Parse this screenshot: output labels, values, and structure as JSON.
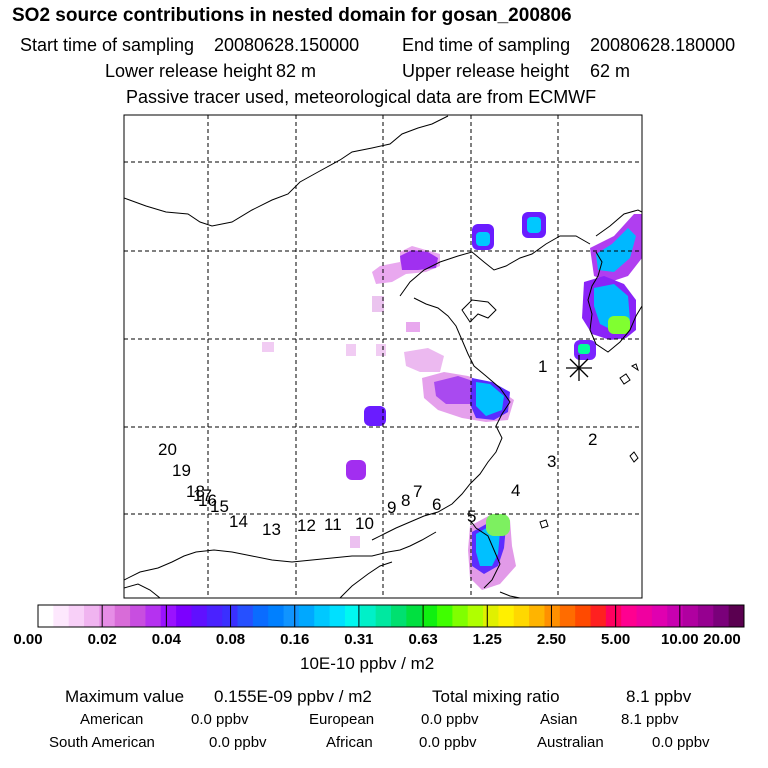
{
  "title": "SO2 source contributions in nested domain for gosan_200806",
  "header": {
    "start_label": "Start time of sampling",
    "start_value": "20080628.150000",
    "end_label": "End time of sampling",
    "end_value": "20080628.180000",
    "lower_label": "Lower release height",
    "lower_value": "82 m",
    "upper_label": "Upper release height",
    "upper_value": "62 m",
    "note": "Passive tracer used, meteorological data are from ECMWF"
  },
  "map": {
    "receptor_marker": "asterisk-icon",
    "trajectory_points": [
      {
        "label": "1"
      },
      {
        "label": "2"
      },
      {
        "label": "3"
      },
      {
        "label": "4"
      },
      {
        "label": "5"
      },
      {
        "label": "6"
      },
      {
        "label": "7"
      },
      {
        "label": "8"
      },
      {
        "label": "9"
      },
      {
        "label": "10"
      },
      {
        "label": "11"
      },
      {
        "label": "12"
      },
      {
        "label": "13"
      },
      {
        "label": "14"
      },
      {
        "label": "15"
      },
      {
        "label": "16"
      },
      {
        "label": "17"
      },
      {
        "label": "18"
      },
      {
        "label": "19"
      },
      {
        "label": "20"
      }
    ]
  },
  "colorbar": {
    "ticks": [
      "0.00",
      "0.02",
      "0.04",
      "0.08",
      "0.16",
      "0.31",
      "0.63",
      "1.25",
      "2.50",
      "5.00",
      "10.00",
      "20.00"
    ],
    "colors": [
      "#ffffff",
      "#fde8fd",
      "#f8d0f8",
      "#f0b4f0",
      "#e68de6",
      "#d86cd8",
      "#c84ee0",
      "#b532f0",
      "#9a12ff",
      "#7c00ff",
      "#6010ff",
      "#4a22ff",
      "#3a30ff",
      "#2650ff",
      "#0a6cff",
      "#0080ff",
      "#1094ff",
      "#00a8ff",
      "#00c8ff",
      "#00e0ff",
      "#00f8f0",
      "#00f0c8",
      "#00e8a0",
      "#00e070",
      "#00e040",
      "#10f010",
      "#40ff00",
      "#80ff00",
      "#b0ff00",
      "#e0f000",
      "#fff000",
      "#ffd800",
      "#ffb400",
      "#ff9000",
      "#ff6c00",
      "#ff4a00",
      "#ff2020",
      "#ff0060",
      "#ff0090",
      "#f000a0",
      "#e000b0",
      "#c800b0",
      "#b000a0",
      "#960090",
      "#7a007a",
      "#5a0050"
    ],
    "unit": "10E-10 ppbv / m2"
  },
  "stats": {
    "max_label": "Maximum value",
    "max_value": "0.155E-09 ppbv / m2",
    "total_label": "Total mixing ratio",
    "total_value": "8.1 ppbv",
    "american_label": "American",
    "american_value": "0.0 ppbv",
    "european_label": "European",
    "european_value": "0.0 ppbv",
    "asian_label": "Asian",
    "asian_value": "8.1 ppbv",
    "south_american_label": "South American",
    "south_american_value": "0.0 ppbv",
    "african_label": "African",
    "african_value": "0.0 ppbv",
    "australian_label": "Australian",
    "australian_value": "0.0 ppbv"
  }
}
